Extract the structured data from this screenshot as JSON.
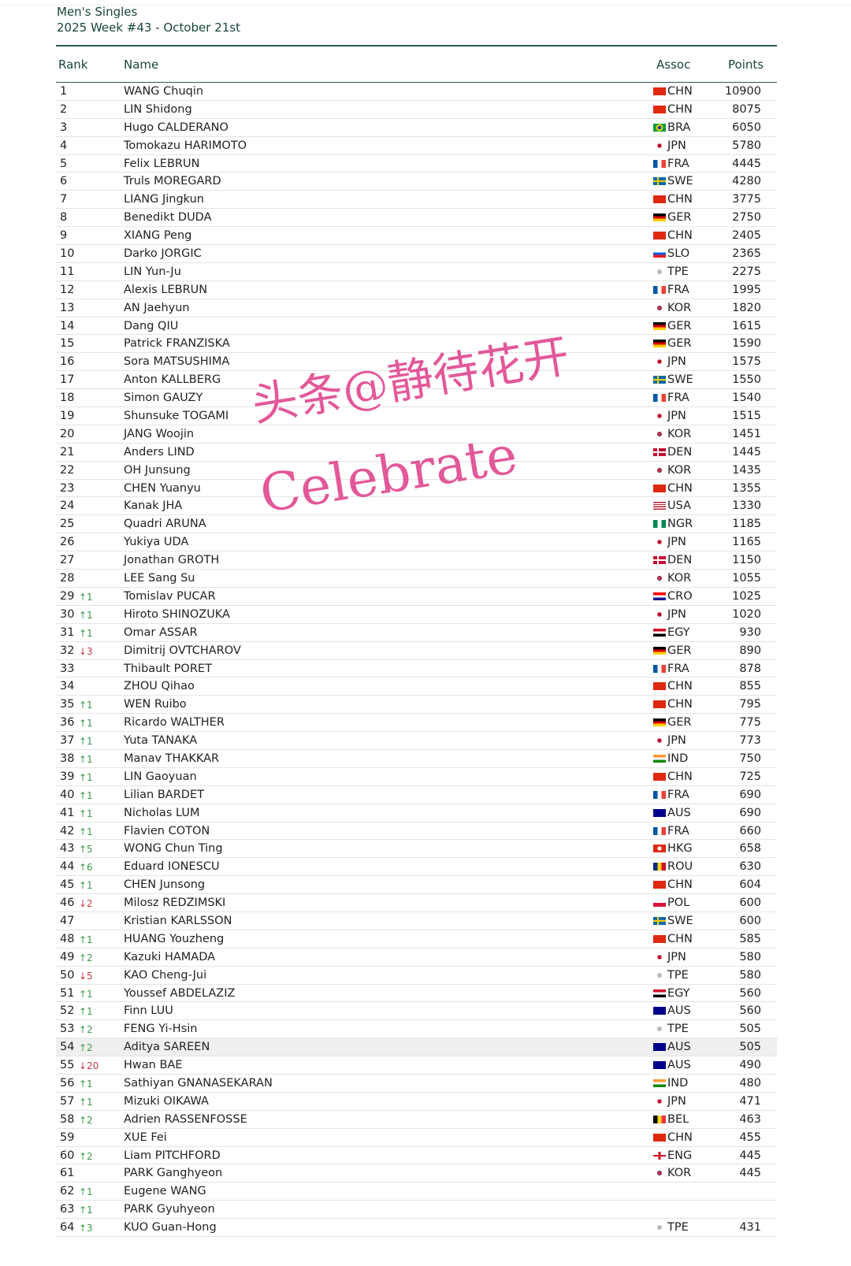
{
  "header": {
    "title": "Men's Singles",
    "subtitle": "2025 Week #43 - October 21st"
  },
  "columns": {
    "rank": "Rank",
    "name": "Name",
    "assoc": "Assoc",
    "points": "Points"
  },
  "highlighted_rank": "54",
  "colors": {
    "accent": "#17463a",
    "up": "#3a9a4a",
    "down": "#c0394a",
    "watermark": "#e0468f"
  },
  "watermark": {
    "line1": "头条@静待花开",
    "line2": "Celebrate"
  },
  "rows": [
    [
      "1",
      "",
      "WANG Chuqin",
      "CHN",
      "10900"
    ],
    [
      "2",
      "",
      "LIN Shidong",
      "CHN",
      "8075"
    ],
    [
      "3",
      "",
      "Hugo CALDERANO",
      "BRA",
      "6050"
    ],
    [
      "4",
      "",
      "Tomokazu HARIMOTO",
      "JPN",
      "5780"
    ],
    [
      "5",
      "",
      "Felix LEBRUN",
      "FRA",
      "4445"
    ],
    [
      "6",
      "",
      "Truls MOREGARD",
      "SWE",
      "4280"
    ],
    [
      "7",
      "",
      "LIANG Jingkun",
      "CHN",
      "3775"
    ],
    [
      "8",
      "",
      "Benedikt DUDA",
      "GER",
      "2750"
    ],
    [
      "9",
      "",
      "XIANG Peng",
      "CHN",
      "2405"
    ],
    [
      "10",
      "",
      "Darko JORGIC",
      "SLO",
      "2365"
    ],
    [
      "11",
      "",
      "LIN Yun-Ju",
      "TPE",
      "2275"
    ],
    [
      "12",
      "",
      "Alexis LEBRUN",
      "FRA",
      "1995"
    ],
    [
      "13",
      "",
      "AN Jaehyun",
      "KOR",
      "1820"
    ],
    [
      "14",
      "",
      "Dang QIU",
      "GER",
      "1615"
    ],
    [
      "15",
      "",
      "Patrick FRANZISKA",
      "GER",
      "1590"
    ],
    [
      "16",
      "",
      "Sora MATSUSHIMA",
      "JPN",
      "1575"
    ],
    [
      "17",
      "",
      "Anton KALLBERG",
      "SWE",
      "1550"
    ],
    [
      "18",
      "",
      "Simon GAUZY",
      "FRA",
      "1540"
    ],
    [
      "19",
      "",
      "Shunsuke TOGAMI",
      "JPN",
      "1515"
    ],
    [
      "20",
      "",
      "JANG Woojin",
      "KOR",
      "1451"
    ],
    [
      "21",
      "",
      "Anders LIND",
      "DEN",
      "1445"
    ],
    [
      "22",
      "",
      "OH Junsung",
      "KOR",
      "1435"
    ],
    [
      "23",
      "",
      "CHEN Yuanyu",
      "CHN",
      "1355"
    ],
    [
      "24",
      "",
      "Kanak JHA",
      "USA",
      "1330"
    ],
    [
      "25",
      "",
      "Quadri ARUNA",
      "NGR",
      "1185"
    ],
    [
      "26",
      "",
      "Yukiya UDA",
      "JPN",
      "1165"
    ],
    [
      "27",
      "",
      "Jonathan GROTH",
      "DEN",
      "1150"
    ],
    [
      "28",
      "",
      "LEE Sang Su",
      "KOR",
      "1055"
    ],
    [
      "29",
      "↑1",
      "Tomislav PUCAR",
      "CRO",
      "1025"
    ],
    [
      "30",
      "↑1",
      "Hiroto SHINOZUKA",
      "JPN",
      "1020"
    ],
    [
      "31",
      "↑1",
      "Omar ASSAR",
      "EGY",
      "930"
    ],
    [
      "32",
      "↓3",
      "Dimitrij OVTCHAROV",
      "GER",
      "890"
    ],
    [
      "33",
      "",
      "Thibault PORET",
      "FRA",
      "878"
    ],
    [
      "34",
      "",
      "ZHOU Qihao",
      "CHN",
      "855"
    ],
    [
      "35",
      "↑1",
      "WEN Ruibo",
      "CHN",
      "795"
    ],
    [
      "36",
      "↑1",
      "Ricardo WALTHER",
      "GER",
      "775"
    ],
    [
      "37",
      "↑1",
      "Yuta TANAKA",
      "JPN",
      "773"
    ],
    [
      "38",
      "↑1",
      "Manav THAKKAR",
      "IND",
      "750"
    ],
    [
      "39",
      "↑1",
      "LIN Gaoyuan",
      "CHN",
      "725"
    ],
    [
      "40",
      "↑1",
      "Lilian BARDET",
      "FRA",
      "690"
    ],
    [
      "41",
      "↑1",
      "Nicholas LUM",
      "AUS",
      "690"
    ],
    [
      "42",
      "↑1",
      "Flavien COTON",
      "FRA",
      "660"
    ],
    [
      "43",
      "↑5",
      "WONG Chun Ting",
      "HKG",
      "658"
    ],
    [
      "44",
      "↑6",
      "Eduard IONESCU",
      "ROU",
      "630"
    ],
    [
      "45",
      "↑1",
      "CHEN Junsong",
      "CHN",
      "604"
    ],
    [
      "46",
      "↓2",
      "Milosz REDZIMSKI",
      "POL",
      "600"
    ],
    [
      "47",
      "",
      "Kristian KARLSSON",
      "SWE",
      "600"
    ],
    [
      "48",
      "↑1",
      "HUANG Youzheng",
      "CHN",
      "585"
    ],
    [
      "49",
      "↑2",
      "Kazuki HAMADA",
      "JPN",
      "580"
    ],
    [
      "50",
      "↓5",
      "KAO Cheng-Jui",
      "TPE",
      "580"
    ],
    [
      "51",
      "↑1",
      "Youssef ABDELAZIZ",
      "EGY",
      "560"
    ],
    [
      "52",
      "↑1",
      "Finn LUU",
      "AUS",
      "560"
    ],
    [
      "53",
      "↑2",
      "FENG Yi-Hsin",
      "TPE",
      "505"
    ],
    [
      "54",
      "↑2",
      "Aditya SAREEN",
      "AUS",
      "505"
    ],
    [
      "55",
      "↓20",
      "Hwan BAE",
      "AUS",
      "490"
    ],
    [
      "56",
      "↑1",
      "Sathiyan GNANASEKARAN",
      "IND",
      "480"
    ],
    [
      "57",
      "↑1",
      "Mizuki OIKAWA",
      "JPN",
      "471"
    ],
    [
      "58",
      "↑2",
      "Adrien RASSENFOSSE",
      "BEL",
      "463"
    ],
    [
      "59",
      "",
      "XUE Fei",
      "CHN",
      "455"
    ],
    [
      "60",
      "↑2",
      "Liam PITCHFORD",
      "ENG",
      "445"
    ],
    [
      "61",
      "",
      "PARK Ganghyeon",
      "KOR",
      "445"
    ],
    [
      "62",
      "↑1",
      "Eugene WANG",
      "",
      ""
    ],
    [
      "63",
      "↑1",
      "PARK Gyuhyeon",
      "",
      ""
    ],
    [
      "64",
      "↑3",
      "KUO Guan-Hong",
      "TPE",
      "431"
    ]
  ]
}
